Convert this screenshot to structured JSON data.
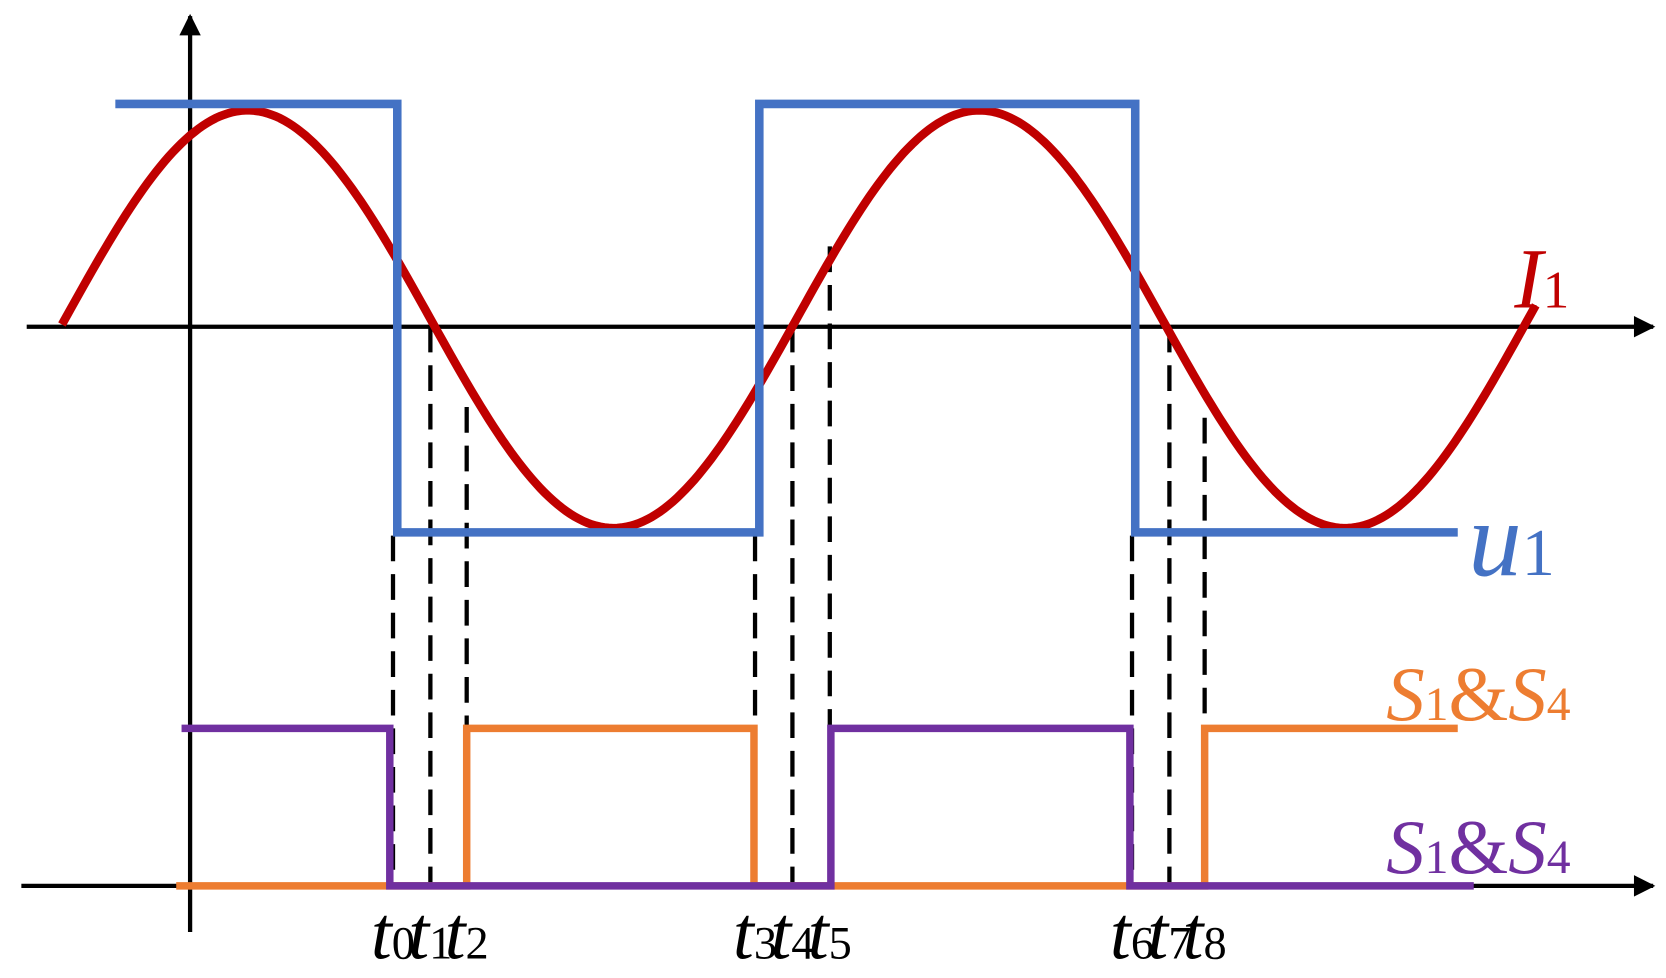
{
  "curves": {
    "current": {
      "symbol": "I",
      "sub": "1"
    },
    "voltage": {
      "symbol": "u",
      "sub": "1"
    },
    "switch_upper": {
      "parts": [
        "S",
        "1",
        "&",
        "S",
        "4"
      ]
    },
    "switch_lower": {
      "parts": [
        "S",
        "1",
        "&",
        "S",
        "4"
      ]
    }
  },
  "times": [
    {
      "symbol": "t",
      "sub": "0"
    },
    {
      "symbol": "t",
      "sub": "1"
    },
    {
      "symbol": "t",
      "sub": "2"
    },
    {
      "symbol": "t",
      "sub": "3"
    },
    {
      "symbol": "t",
      "sub": "4"
    },
    {
      "symbol": "t",
      "sub": "5"
    },
    {
      "symbol": "t",
      "sub": "6"
    },
    {
      "symbol": "t",
      "sub": "7"
    },
    {
      "symbol": "t",
      "sub": "8"
    }
  ]
}
